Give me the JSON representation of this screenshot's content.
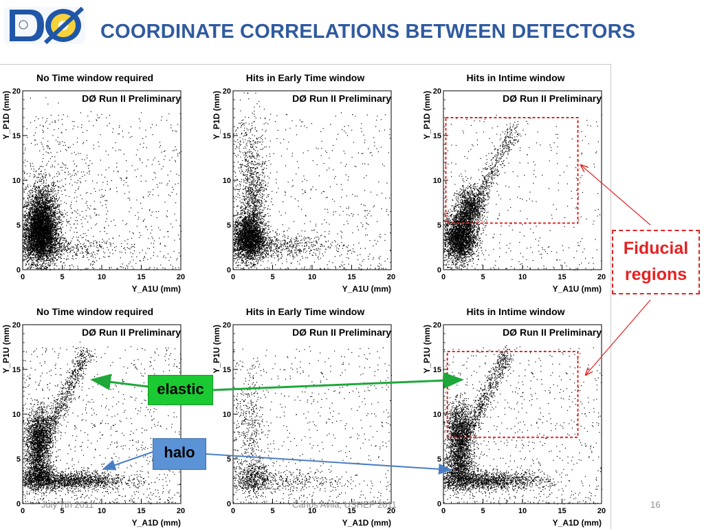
{
  "header": {
    "logo_text": "DØ",
    "title": "COORDINATE CORRELATIONS BETWEEN DETECTORS"
  },
  "footer": {
    "date": "July 7th 2011",
    "author": "Carlos Avila, USHEP 2011",
    "page": "16"
  },
  "callouts": {
    "fiducial": [
      "Fiducial",
      "regions"
    ],
    "elastic": "elastic",
    "halo": "halo"
  },
  "colors": {
    "title": "#2f5a9f",
    "fiducial": "#e52222",
    "elastic_box": "#1bc932",
    "elastic_arrow": "#1ea83a",
    "halo_box": "#5b93d6",
    "halo_arrow": "#4a7ec4"
  },
  "chart_data": [
    {
      "type": "scatter",
      "panel": "top-left",
      "title": "No Time window required",
      "subtitle": "DØ Run II Preliminary",
      "xlabel": "Y_A1U (mm)",
      "ylabel": "Y_P1D (mm)",
      "xlim": [
        0,
        20
      ],
      "ylim": [
        0,
        20
      ],
      "xticks": [
        0,
        5,
        10,
        15,
        20
      ],
      "yticks": [
        0,
        5,
        10,
        15,
        20
      ],
      "grid": false,
      "clusters": [
        {
          "cx": 2.2,
          "cy": 4.0,
          "sx": 1.1,
          "sy": 1.6,
          "n": 4200
        },
        {
          "cx": 2.5,
          "cy": 6.8,
          "sx": 1.0,
          "sy": 1.5,
          "n": 1200
        },
        {
          "cx": 3.0,
          "cy": 2.4,
          "sx": 4.0,
          "sy": 0.5,
          "n": 500
        },
        {
          "cx": 3.5,
          "cy": 9.0,
          "sx": 2.5,
          "sy": 4.0,
          "n": 300
        }
      ],
      "uniform_noise": 700
    },
    {
      "type": "scatter",
      "panel": "top-middle",
      "title": "Hits in Early Time window",
      "subtitle": "DØ Run II Preliminary",
      "xlabel": "Y_A1U (mm)",
      "ylabel": "Y_P1D (mm)",
      "xlim": [
        0,
        20
      ],
      "ylim": [
        0,
        20
      ],
      "xticks": [
        0,
        5,
        10,
        15,
        20
      ],
      "yticks": [
        0,
        5,
        10,
        15,
        20
      ],
      "grid": false,
      "clusters": [
        {
          "cx": 2.0,
          "cy": 3.6,
          "sx": 1.0,
          "sy": 1.3,
          "n": 2600
        },
        {
          "cx": 2.5,
          "cy": 7.5,
          "sx": 0.9,
          "sy": 2.5,
          "n": 800
        },
        {
          "cx": 5.0,
          "cy": 2.6,
          "sx": 4.5,
          "sy": 0.7,
          "n": 700
        },
        {
          "cx": 2.0,
          "cy": 13.0,
          "sx": 1.0,
          "sy": 3.0,
          "n": 300
        }
      ],
      "uniform_noise": 500
    },
    {
      "type": "scatter",
      "panel": "top-right",
      "title": "Hits in Intime window",
      "subtitle": "DØ Run II Preliminary",
      "xlabel": "Y_A1U (mm)",
      "ylabel": "Y_P1D (mm)",
      "xlim": [
        0,
        20
      ],
      "ylim": [
        0,
        20
      ],
      "xticks": [
        0,
        5,
        10,
        15,
        20
      ],
      "yticks": [
        0,
        5,
        10,
        15,
        20
      ],
      "grid": false,
      "fiducial_region": {
        "x": [
          0.3,
          17.0
        ],
        "y": [
          5.2,
          17.0
        ]
      },
      "clusters": [
        {
          "cx": 2.0,
          "cy": 3.6,
          "sx": 1.0,
          "sy": 1.4,
          "n": 2600
        },
        {
          "cx": 3.3,
          "cy": 6.8,
          "sx": 0.9,
          "sy": 1.3,
          "n": 1100
        }
      ],
      "diagonal_band": {
        "x0": 1.5,
        "y0": 3.0,
        "x1": 9.0,
        "y1": 16.0,
        "width": 1.0,
        "n": 700
      },
      "uniform_noise": 350
    },
    {
      "type": "scatter",
      "panel": "bottom-left",
      "title": "No Time window required",
      "subtitle": "DØ Run II Preliminary",
      "xlabel": "Y_A1D (mm)",
      "ylabel": "Y_P1U (mm)",
      "xlim": [
        0,
        20
      ],
      "ylim": [
        0,
        20
      ],
      "xticks": [
        0,
        5,
        10,
        15,
        20
      ],
      "yticks": [
        0,
        5,
        10,
        15,
        20
      ],
      "grid": false,
      "clusters": [
        {
          "cx": 2.0,
          "cy": 7.5,
          "sx": 0.8,
          "sy": 1.6,
          "n": 1600
        },
        {
          "cx": 5.0,
          "cy": 2.6,
          "sx": 4.0,
          "sy": 0.5,
          "n": 1800
        },
        {
          "cx": 2.0,
          "cy": 3.5,
          "sx": 0.9,
          "sy": 1.0,
          "n": 900
        }
      ],
      "diagonal_band": {
        "x0": 1.5,
        "y0": 5.0,
        "x1": 8.0,
        "y1": 17.0,
        "width": 1.0,
        "n": 900
      },
      "uniform_noise": 900
    },
    {
      "type": "scatter",
      "panel": "bottom-middle",
      "title": "Hits in Early Time window",
      "subtitle": "DØ Run II Preliminary",
      "xlabel": "Y_A1D (mm)",
      "ylabel": "Y_P1U (mm)",
      "xlim": [
        0,
        20
      ],
      "ylim": [
        0,
        20
      ],
      "xticks": [
        0,
        5,
        10,
        15,
        20
      ],
      "yticks": [
        0,
        5,
        10,
        15,
        20
      ],
      "grid": false,
      "clusters": [
        {
          "cx": 2.5,
          "cy": 3.0,
          "sx": 1.0,
          "sy": 1.0,
          "n": 500
        },
        {
          "cx": 2.0,
          "cy": 9.0,
          "sx": 0.9,
          "sy": 3.0,
          "n": 350
        },
        {
          "cx": 6.0,
          "cy": 2.6,
          "sx": 4.0,
          "sy": 0.6,
          "n": 350
        }
      ],
      "uniform_noise": 600
    },
    {
      "type": "scatter",
      "panel": "bottom-right",
      "title": "Hits in Intime window",
      "subtitle": "DØ Run II Preliminary",
      "xlabel": "Y_A1D (mm)",
      "ylabel": "Y_P1U (mm)",
      "xlim": [
        0,
        20
      ],
      "ylim": [
        0,
        20
      ],
      "xticks": [
        0,
        5,
        10,
        15,
        20
      ],
      "yticks": [
        0,
        5,
        10,
        15,
        20
      ],
      "grid": false,
      "fiducial_region": {
        "x": [
          0.5,
          17.0
        ],
        "y": [
          7.4,
          17.0
        ]
      },
      "clusters": [
        {
          "cx": 2.0,
          "cy": 8.0,
          "sx": 0.8,
          "sy": 1.6,
          "n": 1400
        },
        {
          "cx": 5.0,
          "cy": 2.6,
          "sx": 4.0,
          "sy": 0.5,
          "n": 1600
        },
        {
          "cx": 2.0,
          "cy": 4.0,
          "sx": 0.9,
          "sy": 1.2,
          "n": 900
        }
      ],
      "diagonal_band": {
        "x0": 1.5,
        "y0": 5.0,
        "x1": 8.0,
        "y1": 17.0,
        "width": 1.0,
        "n": 900
      },
      "uniform_noise": 700
    }
  ]
}
